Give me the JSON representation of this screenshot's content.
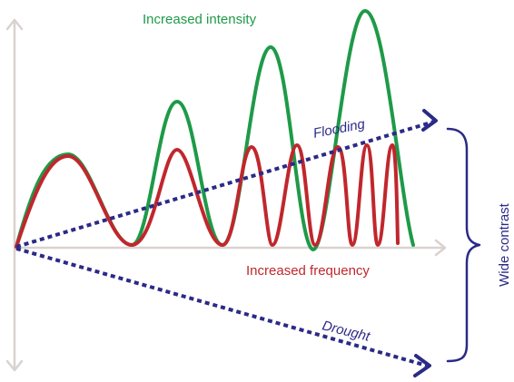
{
  "labels": {
    "intensity": "Increased intensity",
    "frequency": "Increased frequency",
    "flooding": "Flooding",
    "drought": "Drought",
    "contrast": "Wide contrast"
  },
  "colors": {
    "axis": "#d9d2cf",
    "intensity": "#1e9a48",
    "frequency": "#c0272d",
    "arrow": "#2b2a86"
  }
}
